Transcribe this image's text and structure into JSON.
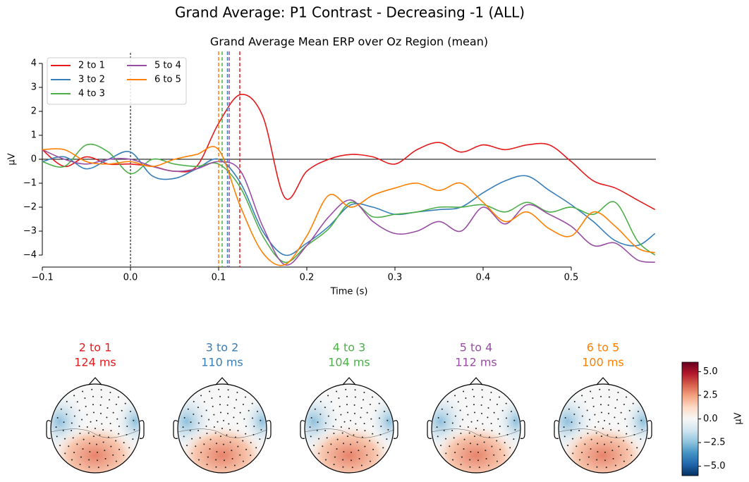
{
  "chart_data": {
    "type": "line",
    "suptitle": "Grand Average: P1 Contrast - Decreasing -1 (ALL)",
    "title": "Grand Average Mean ERP over Oz Region (mean)",
    "xlabel": "Time (s)",
    "ylabel": "µV",
    "x": [
      -0.1,
      -0.075,
      -0.05,
      -0.025,
      0,
      0.025,
      0.05,
      0.075,
      0.1,
      0.125,
      0.15,
      0.175,
      0.2,
      0.225,
      0.25,
      0.275,
      0.3,
      0.325,
      0.35,
      0.375,
      0.4,
      0.425,
      0.45,
      0.475,
      0.5,
      0.525,
      0.55,
      0.575,
      0.595
    ],
    "xlim": [
      -0.1,
      0.596
    ],
    "ylim": [
      -4.5,
      4.5
    ],
    "xticks": [
      {
        "value": -0.1,
        "label": "−0.1"
      },
      {
        "value": 0,
        "label": "0.0"
      },
      0.1,
      0.2,
      0.3,
      0.4,
      0.5
    ],
    "yticks": [
      {
        "value": -4,
        "label": "−4"
      },
      {
        "value": -3,
        "label": "−3"
      },
      {
        "value": -2,
        "label": "−2"
      },
      {
        "value": -1,
        "label": "−1"
      },
      0,
      1,
      2,
      3,
      4
    ],
    "legend": "upper left",
    "series": [
      {
        "name": "2 to 1",
        "color": "#e41a1c",
        "peak_time": 0.124,
        "peak_label": "124 ms",
        "values": [
          0.4,
          -0.3,
          0.1,
          -0.2,
          -0.2,
          -0.3,
          -0.5,
          -0.3,
          1.5,
          2.7,
          1.8,
          -1.6,
          -0.5,
          0.0,
          0.2,
          0.1,
          -0.2,
          0.4,
          0.7,
          0.3,
          0.6,
          0.4,
          0.6,
          0.6,
          -0.1,
          -0.9,
          -1.2,
          -1.7,
          -2.1
        ]
      },
      {
        "name": "3 to 2",
        "color": "#377eb8",
        "peak_time": 0.11,
        "peak_label": "110 ms",
        "values": [
          -0.1,
          0.1,
          -0.4,
          0.0,
          0.3,
          -0.7,
          -0.8,
          -0.4,
          0.0,
          -1.0,
          -3.0,
          -4.0,
          -3.5,
          -2.8,
          -1.9,
          -2.0,
          -2.3,
          -2.2,
          -2.1,
          -2.0,
          -1.4,
          -0.9,
          -0.7,
          -1.3,
          -1.9,
          -2.6,
          -3.4,
          -3.6,
          -3.1
        ]
      },
      {
        "name": "4 to 3",
        "color": "#4daf4a",
        "peak_time": 0.104,
        "peak_label": "104 ms",
        "values": [
          -0.1,
          -0.3,
          0.6,
          0.3,
          -0.6,
          0.0,
          -0.2,
          -0.3,
          -0.2,
          -1.2,
          -3.2,
          -4.3,
          -3.6,
          -2.9,
          -1.8,
          -2.4,
          -2.3,
          -2.2,
          -2.0,
          -2.0,
          -1.9,
          -2.2,
          -1.8,
          -2.2,
          -2.0,
          -2.3,
          -1.8,
          -3.4,
          -4.0
        ]
      },
      {
        "name": "5 to 4",
        "color": "#984ea3",
        "peak_time": 0.112,
        "peak_label": "112 ms",
        "values": [
          0.4,
          0.0,
          -0.2,
          0.0,
          0.0,
          -0.3,
          -0.5,
          -0.4,
          -0.1,
          -0.5,
          -2.8,
          -4.4,
          -3.6,
          -2.4,
          -1.7,
          -2.6,
          -3.1,
          -3.0,
          -2.6,
          -3.0,
          -2.0,
          -2.7,
          -1.9,
          -2.3,
          -2.8,
          -3.6,
          -3.5,
          -4.2,
          -4.3
        ]
      },
      {
        "name": "6 to 5",
        "color": "#ff7f00",
        "peak_time": 0.1,
        "peak_label": "100 ms",
        "values": [
          0.4,
          0.4,
          -0.1,
          -0.2,
          -0.1,
          -0.3,
          0.0,
          0.2,
          0.4,
          -2.0,
          -3.9,
          -4.4,
          -3.2,
          -1.5,
          -2.0,
          -1.5,
          -1.2,
          -1.0,
          -1.3,
          -1.0,
          -1.8,
          -2.6,
          -2.2,
          -2.9,
          -3.2,
          -2.2,
          -2.8,
          -3.7,
          -3.9
        ]
      }
    ],
    "colorbar": {
      "label": "µV",
      "clim": [
        -6,
        6
      ],
      "ticks": [
        {
          "value": 5,
          "label": "5.0"
        },
        {
          "value": 2.5,
          "label": "2.5"
        },
        {
          "value": 0,
          "label": "0.0"
        },
        {
          "value": -2.5,
          "label": "−2.5"
        },
        {
          "value": -5,
          "label": "−5.0"
        }
      ]
    }
  }
}
